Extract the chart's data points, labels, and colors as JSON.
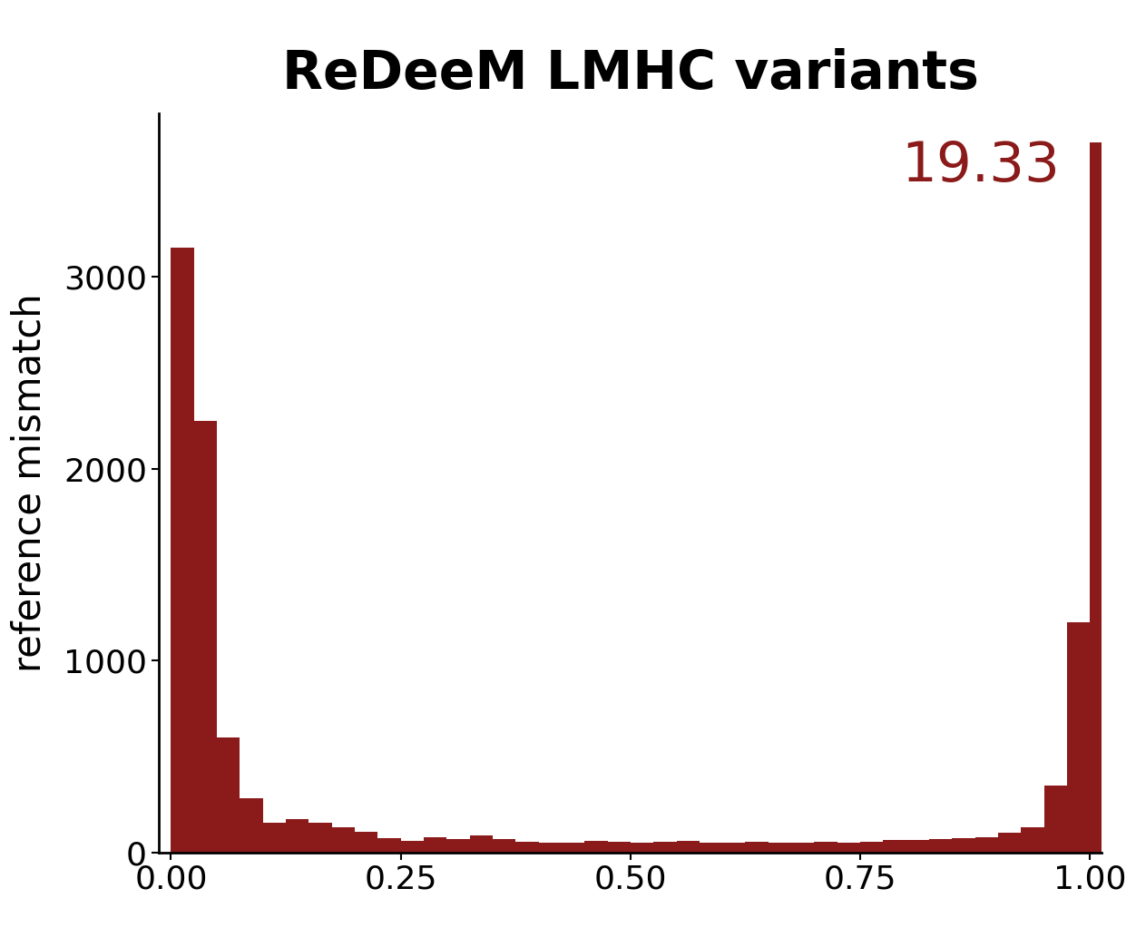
{
  "title": "ReDeeM LMHC variants",
  "annotation_text": "19.33",
  "annotation_color": "#8B1A1A",
  "ylabel": "reference mismatch",
  "bar_color": "#8B1A1A",
  "background_color": "#ffffff",
  "xlim": [
    -0.013,
    1.013
  ],
  "ylim": [
    0,
    3850
  ],
  "yticks": [
    0,
    1000,
    2000,
    3000
  ],
  "xticks": [
    0.0,
    0.25,
    0.5,
    0.75,
    1.0
  ],
  "xticklabels": [
    "0.00",
    "0.25",
    "0.50",
    "0.75",
    "1.00"
  ],
  "title_fontsize": 42,
  "label_fontsize": 30,
  "tick_fontsize": 26,
  "annotation_fontsize": 44,
  "bin_edges": [
    0.0,
    0.025,
    0.05,
    0.075,
    0.1,
    0.125,
    0.15,
    0.175,
    0.2,
    0.225,
    0.25,
    0.275,
    0.3,
    0.325,
    0.35,
    0.375,
    0.4,
    0.425,
    0.45,
    0.475,
    0.5,
    0.525,
    0.55,
    0.575,
    0.6,
    0.625,
    0.65,
    0.675,
    0.7,
    0.725,
    0.75,
    0.775,
    0.8,
    0.825,
    0.85,
    0.875,
    0.9,
    0.925,
    0.95,
    0.975,
    1.0
  ],
  "bin_heights": [
    3150,
    2250,
    600,
    280,
    155,
    175,
    155,
    130,
    105,
    75,
    60,
    80,
    70,
    90,
    70,
    55,
    50,
    50,
    60,
    55,
    50,
    55,
    60,
    50,
    50,
    55,
    50,
    50,
    55,
    50,
    55,
    65,
    65,
    70,
    75,
    80,
    100,
    130,
    350,
    1200,
    3700
  ]
}
